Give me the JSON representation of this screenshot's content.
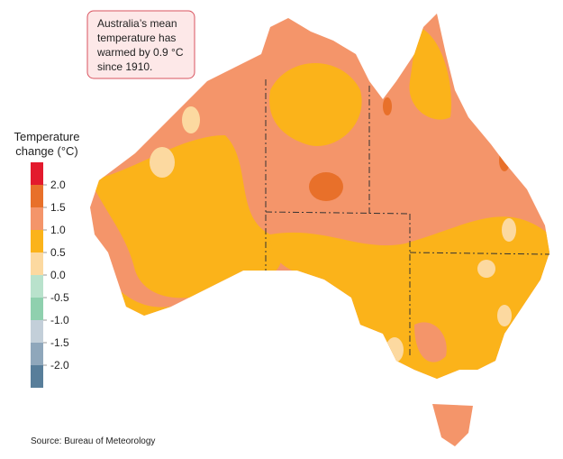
{
  "annotation": {
    "lines": [
      "Australia’s mean",
      "temperature has",
      "warmed by 0.9 °C",
      "since 1910."
    ]
  },
  "legend": {
    "title": [
      "Temperature",
      "change (°C)"
    ],
    "ticks": [
      {
        "value": 2,
        "label": "2.0"
      },
      {
        "value": 1.5,
        "label": "1.5"
      },
      {
        "value": 1,
        "label": "1.0"
      },
      {
        "value": 0.5,
        "label": "0.5"
      },
      {
        "value": 0,
        "label": "0.0"
      },
      {
        "value": -0.5,
        "label": "-0.5"
      },
      {
        "value": -1,
        "label": "-1.0"
      },
      {
        "value": -1.5,
        "label": "-1.5"
      },
      {
        "value": -2,
        "label": "-2.0"
      }
    ],
    "colors": [
      "#e31a2d",
      "#e8702a",
      "#f4956a",
      "#fbb31a",
      "#fcd9a0",
      "#b9e2cc",
      "#8fd0ae",
      "#c3cfd9",
      "#8fa7bb",
      "#587e9a"
    ]
  },
  "source": "Source: Bureau of Meteorology"
}
